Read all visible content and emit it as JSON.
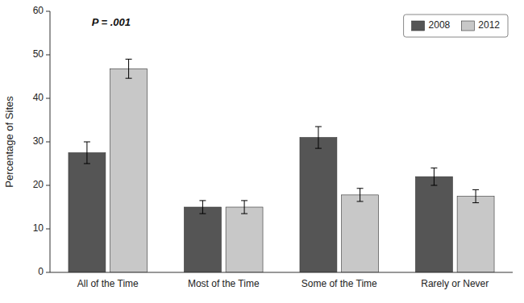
{
  "chart_data": {
    "type": "bar",
    "categories": [
      "All of the Time",
      "Most of the Time",
      "Some of the Time",
      "Rarely or Never"
    ],
    "series": [
      {
        "name": "2008",
        "color": "#555555",
        "values": [
          27.5,
          15.0,
          31.0,
          22.0
        ],
        "errors": [
          2.5,
          1.5,
          2.5,
          2.0
        ]
      },
      {
        "name": "2012",
        "color": "#c8c8c8",
        "values": [
          46.8,
          15.0,
          17.8,
          17.5
        ],
        "errors": [
          2.2,
          1.5,
          1.5,
          1.5
        ]
      }
    ],
    "ylabel": "Percentage of Sites",
    "ylim": [
      0,
      60
    ],
    "yticks": [
      0,
      10,
      20,
      30,
      40,
      50,
      60
    ],
    "annotation": "P = .001",
    "legend": "upper right",
    "grid": false
  }
}
